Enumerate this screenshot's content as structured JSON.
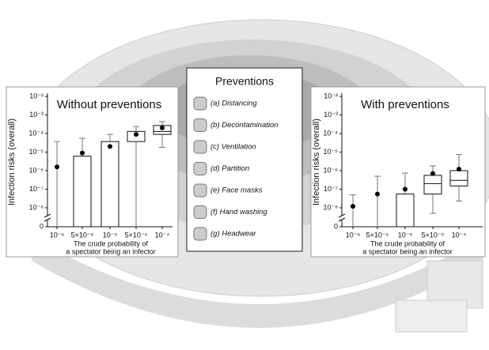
{
  "chart_data": [
    {
      "type": "box",
      "title": "Without preventions",
      "ylabel": "Infection risks (overall)",
      "xlabel": [
        "The crude probability of",
        "a spectator being an infector"
      ],
      "categories": [
        "10⁻⁶",
        "5×10⁻⁶",
        "10⁻⁵",
        "5×10⁻⁵",
        "10⁻⁴"
      ],
      "low": [
        0,
        0,
        0,
        0,
        1.8e-05
      ],
      "q1": [
        null,
        0,
        0,
        3.7e-05,
        9e-05
      ],
      "median": [
        null,
        null,
        null,
        null,
        0.00013
      ],
      "q3": [
        null,
        6e-06,
        3.7e-05,
        0.00013,
        0.00027
      ],
      "high": [
        3.7e-05,
        5.5e-05,
        9e-05,
        0.00024,
        0.00044
      ],
      "mean": [
        1.6e-06,
        9e-06,
        2e-05,
        9e-05,
        0.0002
      ],
      "log_scale": true,
      "axis_break": true,
      "ylim": [
        1e-08,
        0.01
      ],
      "yticks": [
        0,
        {
          "value": 1e-08,
          "label": "10⁻⁸"
        },
        {
          "value": 1e-07,
          "label": "10⁻⁷"
        },
        {
          "value": 1e-06,
          "label": "10⁻⁶"
        },
        {
          "value": 1e-05,
          "label": "10⁻⁵"
        },
        {
          "value": 0.0001,
          "label": "10⁻⁴"
        },
        {
          "value": 0.001,
          "label": "10⁻³"
        },
        {
          "value": 0.01,
          "label": "10⁻²"
        }
      ]
    },
    {
      "type": "box",
      "title": "With preventions",
      "ylabel": "Infection risks (overall)",
      "xlabel": [
        "The crude probability of",
        "a spectator being an infector"
      ],
      "categories": [
        "10⁻⁶",
        "5×10⁻⁶",
        "10⁻⁵",
        "5×10⁻⁵",
        "10⁻⁴"
      ],
      "low": [
        0,
        0,
        0,
        5e-09,
        2.3e-08
      ],
      "q1": [
        null,
        null,
        0,
        5.5e-08,
        1.5e-07
      ],
      "median": [
        null,
        null,
        null,
        2e-07,
        3e-07
      ],
      "q3": [
        null,
        null,
        5.5e-08,
        5.6e-07,
        1e-06
      ],
      "high": [
        5e-08,
        5e-07,
        7.4e-07,
        1.8e-06,
        7.4e-06
      ],
      "mean": [
        1.2e-08,
        5.5e-08,
        1e-07,
        7e-07,
        1.2e-06
      ],
      "log_scale": true,
      "axis_break": true,
      "ylim": [
        1e-08,
        0.01
      ],
      "yticks": [
        0,
        {
          "value": 1e-08,
          "label": "10⁻⁸"
        },
        {
          "value": 1e-07,
          "label": "10⁻⁷"
        },
        {
          "value": 1e-06,
          "label": "10⁻⁶"
        },
        {
          "value": 1e-05,
          "label": "10⁻⁵"
        },
        {
          "value": 0.0001,
          "label": "10⁻⁴"
        },
        {
          "value": 0.001,
          "label": "10⁻³"
        },
        {
          "value": 0.01,
          "label": "10⁻²"
        }
      ]
    }
  ],
  "preventions": {
    "title": "Preventions",
    "items": [
      "(a) Distancing",
      "(b) Decontamination",
      "(c) Ventilation",
      "(d) Partition",
      "(e) Face masks",
      "(f) Hand washing",
      "(g) Headwear"
    ]
  }
}
